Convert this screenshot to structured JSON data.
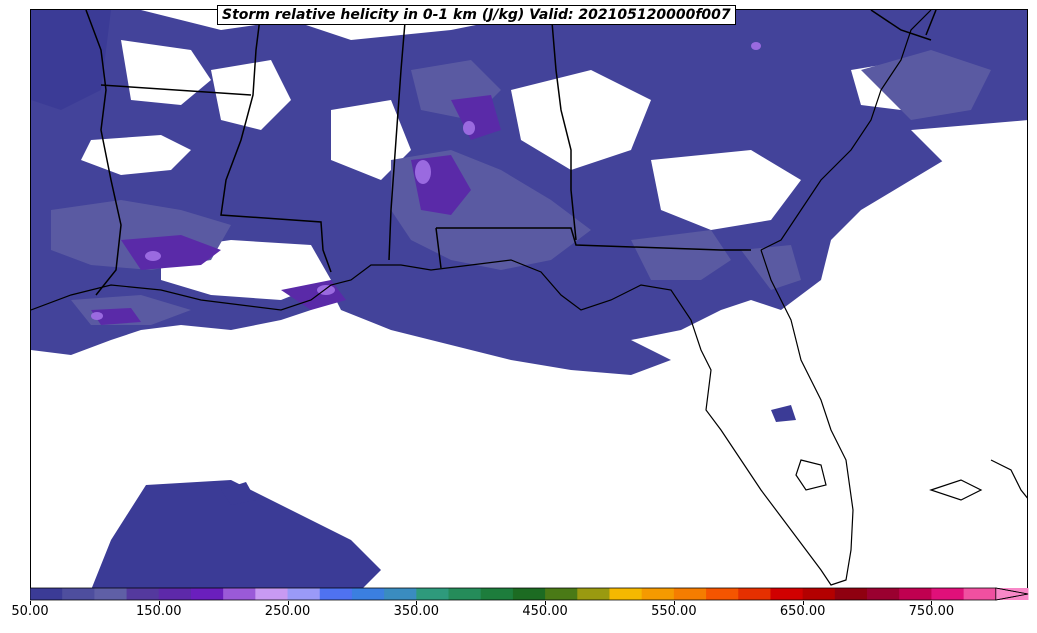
{
  "title": "Storm relative helicity in 0-1 km (J/kg) Valid: 202105120000f007",
  "colorbar": {
    "ticks": [
      "50.00",
      "150.00",
      "250.00",
      "350.00",
      "450.00",
      "550.00",
      "650.00",
      "750.00"
    ],
    "colors": [
      "#3b3b96",
      "#4e4e9e",
      "#5f5fa6",
      "#54399e",
      "#5d29a9",
      "#6a1fbd",
      "#9a5ad8",
      "#c89af2",
      "#9a9af8",
      "#4f72f0",
      "#3b7fe0",
      "#3a8cc0",
      "#2e9a7c",
      "#258c5a",
      "#1d7d3c",
      "#1c6b22",
      "#4a7a16",
      "#9a9a10",
      "#f5b800",
      "#f59a00",
      "#f57d00",
      "#f55500",
      "#e53000",
      "#d10000",
      "#b30000",
      "#8f0010",
      "#9a0030",
      "#c00050",
      "#e0107a",
      "#f050a0",
      "#f888c8"
    ],
    "extend": "max"
  },
  "map": {
    "region": "Southeastern United States and Gulf of Mexico",
    "field_colors": {
      "low": "#3b3b96",
      "mid": "#5a5aa2",
      "high": "#5a2aa8",
      "peak": "#9a6ae0"
    }
  }
}
